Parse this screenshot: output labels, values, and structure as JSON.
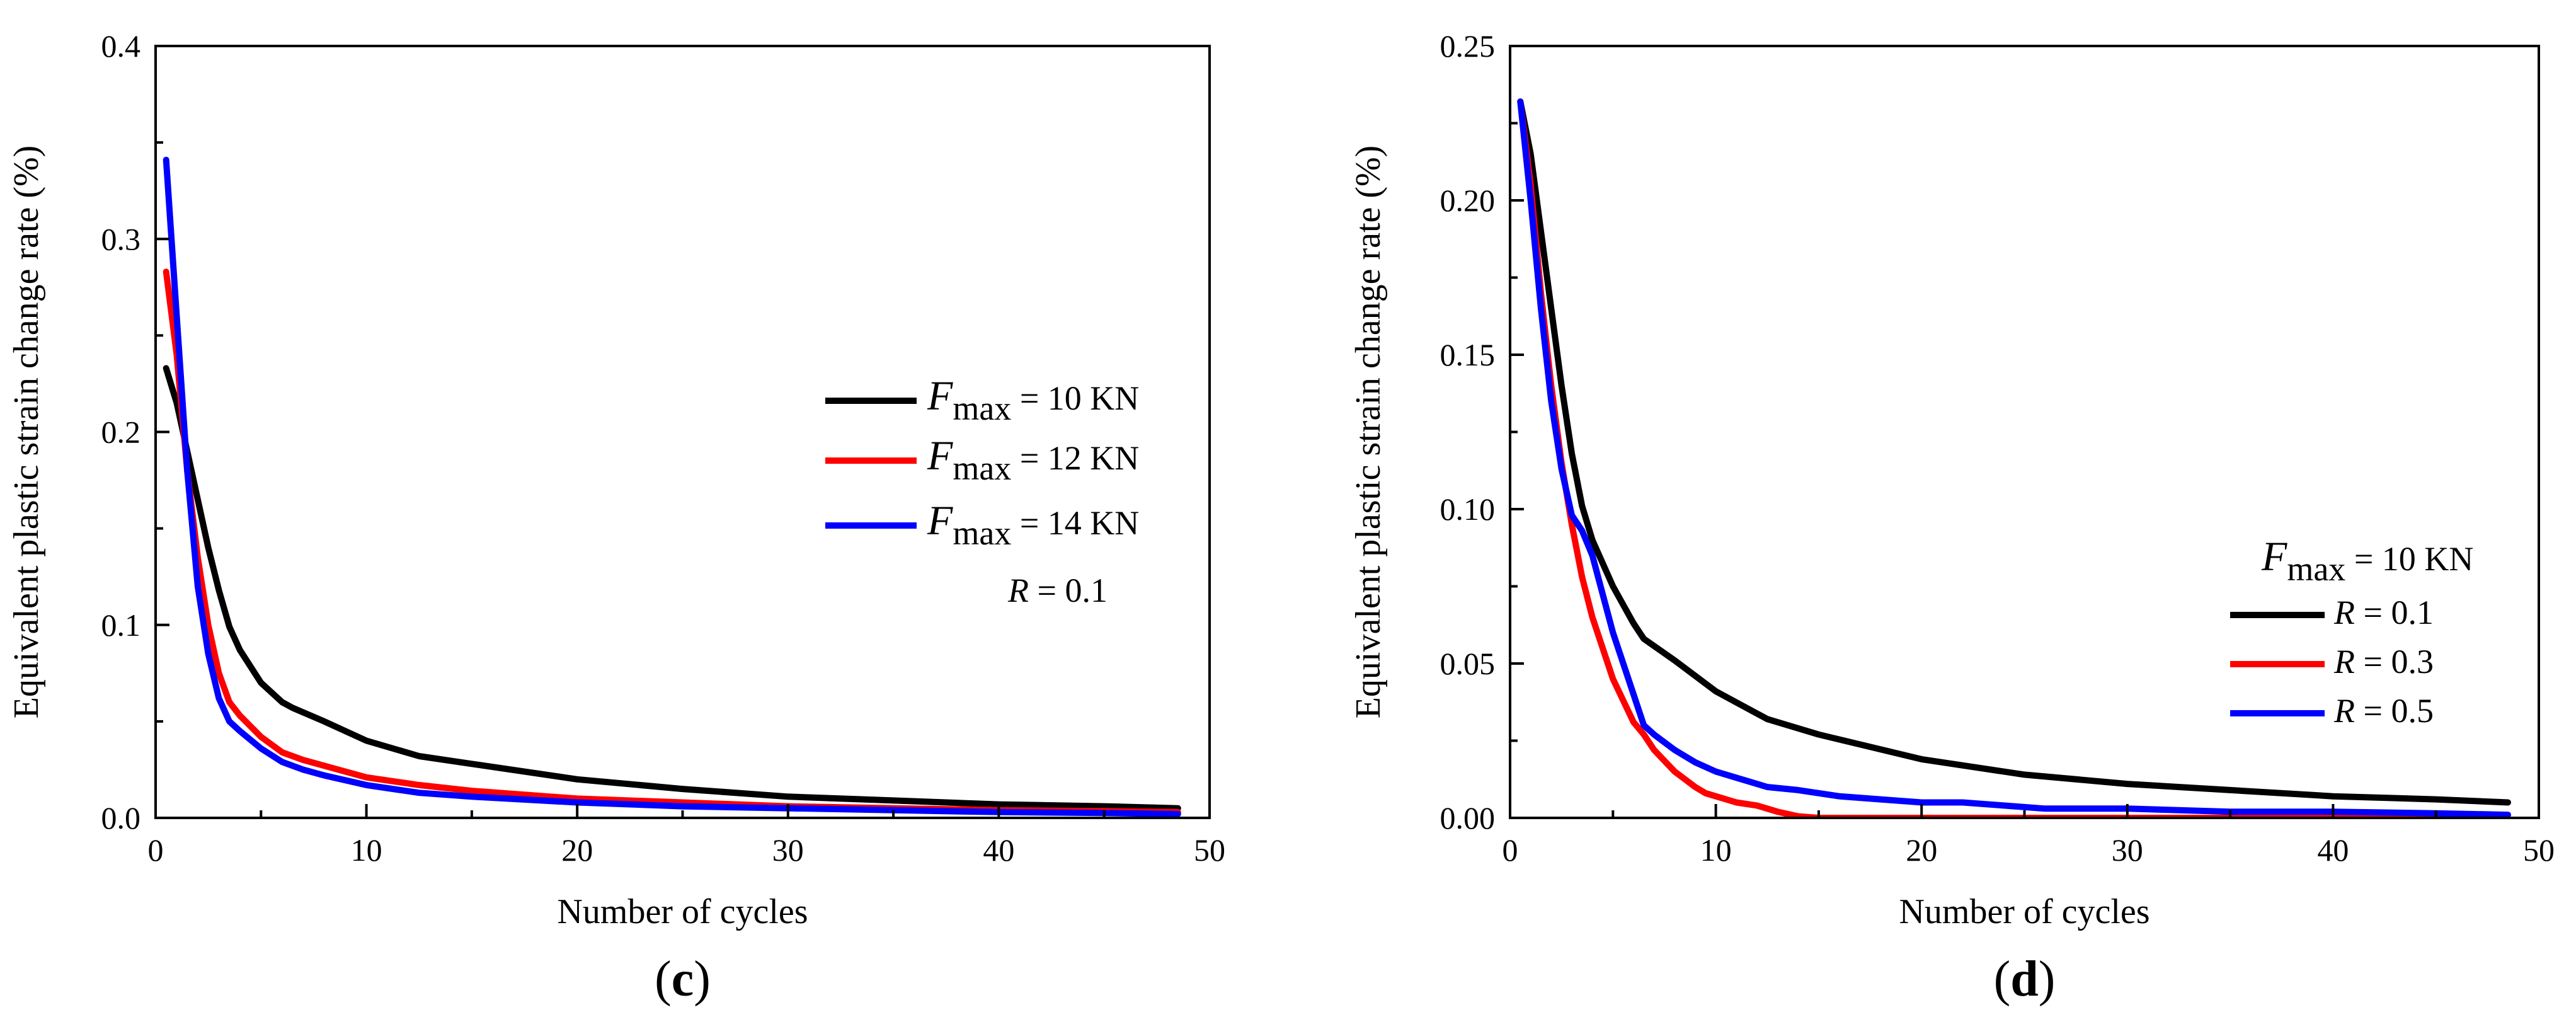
{
  "chart_data": [
    {
      "type": "line",
      "panel_label": "(c)",
      "panel_label_letter": "c",
      "xlabel": "Number of cycles",
      "ylabel": "Equivalent plastic strain change rate (%)",
      "xlim": [
        0,
        50
      ],
      "ylim": [
        0,
        0.4
      ],
      "xticks": [
        0,
        10,
        20,
        30,
        40,
        50
      ],
      "yticks": [
        0.0,
        0.1,
        0.2,
        0.3,
        0.4
      ],
      "ytick_labels": [
        "0.0",
        "0.1",
        "0.2",
        "0.3",
        "0.4"
      ],
      "legend_position": "center-right",
      "legend_note": "R = 0.1",
      "legend_note_parts": {
        "sym": "R",
        "rest": " = 0.1"
      },
      "series": [
        {
          "name": "Fmax = 10 KN",
          "legend_sym": "F",
          "legend_sub": "max",
          "legend_rest": " = 10 KN",
          "color": "#000000",
          "x": [
            0.5,
            1,
            1.5,
            2,
            2.5,
            3,
            3.5,
            4,
            5,
            6,
            6.5,
            8,
            10,
            12.5,
            15,
            20,
            25,
            30,
            35,
            40,
            45,
            48.5
          ],
          "values": [
            0.233,
            0.215,
            0.19,
            0.165,
            0.14,
            0.118,
            0.099,
            0.087,
            0.07,
            0.06,
            0.057,
            0.05,
            0.04,
            0.032,
            0.028,
            0.02,
            0.015,
            0.011,
            0.009,
            0.007,
            0.006,
            0.005
          ]
        },
        {
          "name": "Fmax = 12 KN",
          "legend_sym": "F",
          "legend_sub": "max",
          "legend_rest": " = 12 KN",
          "color": "#ff0000",
          "x": [
            0.5,
            1,
            1.5,
            2,
            2.5,
            3,
            3.5,
            4,
            5,
            6,
            7,
            8,
            10,
            12.5,
            15,
            20,
            25,
            30,
            35,
            40,
            45,
            48.5
          ],
          "values": [
            0.283,
            0.24,
            0.18,
            0.135,
            0.1,
            0.075,
            0.06,
            0.053,
            0.042,
            0.034,
            0.03,
            0.027,
            0.021,
            0.017,
            0.014,
            0.01,
            0.008,
            0.006,
            0.005,
            0.004,
            0.0035,
            0.003
          ]
        },
        {
          "name": "Fmax = 14 KN",
          "legend_sym": "F",
          "legend_sub": "max",
          "legend_rest": " = 14 KN",
          "color": "#0000ff",
          "x": [
            0.5,
            1,
            1.5,
            2,
            2.5,
            3,
            3.5,
            4,
            5,
            6,
            7,
            8,
            10,
            12.5,
            15,
            20,
            25,
            30,
            35,
            40,
            45,
            48.5
          ],
          "values": [
            0.341,
            0.26,
            0.18,
            0.12,
            0.085,
            0.062,
            0.05,
            0.045,
            0.036,
            0.029,
            0.025,
            0.022,
            0.017,
            0.013,
            0.011,
            0.008,
            0.006,
            0.005,
            0.004,
            0.003,
            0.0025,
            0.002
          ]
        }
      ]
    },
    {
      "type": "line",
      "panel_label": "(d)",
      "panel_label_letter": "d",
      "xlabel": "Number of cycles",
      "ylabel": "Equivalent plastic strain change rate (%)",
      "xlim": [
        0,
        50
      ],
      "ylim": [
        0,
        0.25
      ],
      "xticks": [
        0,
        10,
        20,
        30,
        40,
        50
      ],
      "yticks": [
        0.0,
        0.05,
        0.1,
        0.15,
        0.2,
        0.25
      ],
      "ytick_labels": [
        "0.00",
        "0.05",
        "0.10",
        "0.15",
        "0.20",
        "0.25"
      ],
      "legend_position": "center-right",
      "legend_title": "Fmax = 10 KN",
      "legend_title_parts": {
        "sym": "F",
        "sub": "max",
        "rest": " = 10 KN"
      },
      "series": [
        {
          "name": "R = 0.1",
          "legend_sym": "R",
          "legend_rest": " = 0.1",
          "color": "#000000",
          "x": [
            0.5,
            1,
            1.5,
            2,
            2.5,
            3,
            3.5,
            4,
            5,
            6,
            6.5,
            8,
            10,
            12.5,
            15,
            20,
            25,
            30,
            35,
            40,
            45,
            48.5
          ],
          "values": [
            0.232,
            0.215,
            0.19,
            0.165,
            0.14,
            0.118,
            0.101,
            0.09,
            0.075,
            0.063,
            0.058,
            0.051,
            0.041,
            0.032,
            0.027,
            0.019,
            0.014,
            0.011,
            0.009,
            0.007,
            0.006,
            0.005
          ]
        },
        {
          "name": "R = 0.3",
          "legend_sym": "R",
          "legend_rest": " = 0.3",
          "color": "#ff0000",
          "x": [
            0.5,
            1,
            1.5,
            2,
            2.5,
            3,
            3.5,
            4,
            5,
            6,
            6.5,
            7,
            8,
            9,
            9.5,
            10,
            11,
            12,
            12.5,
            13,
            14,
            15,
            20,
            25,
            30,
            35,
            40,
            45,
            48.5
          ],
          "values": [
            0.232,
            0.205,
            0.17,
            0.14,
            0.115,
            0.095,
            0.078,
            0.065,
            0.045,
            0.031,
            0.027,
            0.022,
            0.015,
            0.01,
            0.008,
            0.007,
            0.005,
            0.004,
            0.003,
            0.002,
            0.0005,
            0.0,
            0.0,
            0.0,
            0.0,
            0.0,
            0.0,
            0.0,
            0.0
          ]
        },
        {
          "name": "R = 0.5",
          "legend_sym": "R",
          "legend_rest": " = 0.5",
          "color": "#0000ff",
          "x": [
            0.5,
            1,
            1.5,
            2,
            2.5,
            3,
            3.5,
            4,
            5,
            6,
            6.5,
            7,
            8,
            9,
            10,
            11,
            12,
            12.5,
            14,
            15,
            16,
            18,
            20,
            22,
            24,
            26,
            28,
            30,
            35,
            40,
            45,
            48.5
          ],
          "values": [
            0.232,
            0.2,
            0.165,
            0.135,
            0.113,
            0.098,
            0.093,
            0.085,
            0.06,
            0.04,
            0.03,
            0.027,
            0.022,
            0.018,
            0.015,
            0.013,
            0.011,
            0.01,
            0.009,
            0.008,
            0.007,
            0.006,
            0.005,
            0.005,
            0.004,
            0.003,
            0.003,
            0.003,
            0.002,
            0.002,
            0.0015,
            0.001
          ]
        }
      ]
    }
  ]
}
